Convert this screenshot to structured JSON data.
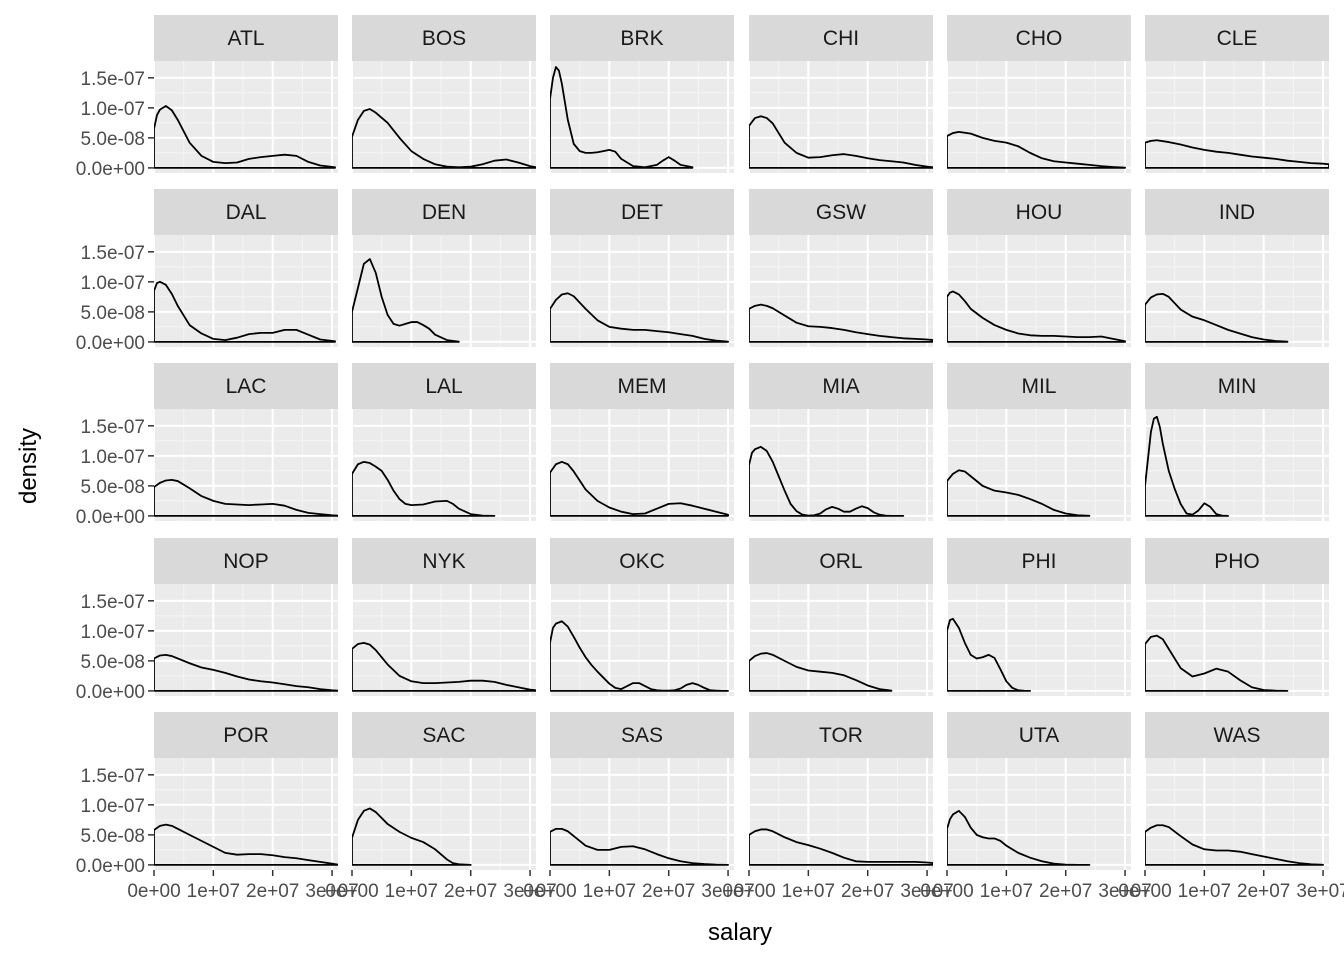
{
  "chart_data": {
    "type": "density",
    "faceted": true,
    "facet_rows": 5,
    "facet_cols": 6,
    "xlabel": "salary",
    "ylabel": "density",
    "xlim": [
      0,
      31000000
    ],
    "ylim": [
      -8.5e-09,
      1.78e-07
    ],
    "x_ticks": [
      0,
      10000000,
      20000000,
      30000000
    ],
    "x_tick_labels": [
      "0e+00",
      "1e+07",
      "2e+07",
      "3e+07"
    ],
    "y_ticks": [
      0,
      5e-08,
      1e-07,
      1.5e-07
    ],
    "y_tick_labels": [
      "0.0e+00",
      "5.0e-08",
      "1.0e-07",
      "1.5e-07"
    ],
    "colors": {
      "panel_bg": "#ebebeb",
      "strip_bg": "#d9d9d9",
      "grid_major": "#ffffff",
      "grid_minor": "#f5f5f5",
      "line": "#000000"
    },
    "facets": [
      {
        "team": "ATL",
        "x": [
          0,
          0.5,
          1,
          2,
          3,
          4,
          6,
          8,
          10,
          12,
          14,
          16,
          18,
          20,
          22,
          24,
          26,
          28,
          30.5
        ],
        "y": [
          6.5,
          8.8,
          9.7,
          10.3,
          9.6,
          8.0,
          4.2,
          2.0,
          1.0,
          0.8,
          0.9,
          1.5,
          1.8,
          2.0,
          2.2,
          2.0,
          1.0,
          0.4,
          0.1
        ]
      },
      {
        "team": "BOS",
        "x": [
          0,
          1,
          2,
          3,
          4,
          6,
          8,
          10,
          12,
          14,
          16,
          18,
          20,
          22,
          24,
          26,
          28,
          30,
          31
        ],
        "y": [
          5.2,
          8.0,
          9.5,
          9.8,
          9.2,
          7.5,
          5.0,
          2.8,
          1.5,
          0.6,
          0.2,
          0.1,
          0.2,
          0.6,
          1.2,
          1.4,
          0.9,
          0.3,
          0.1
        ]
      },
      {
        "team": "BRK",
        "x": [
          0,
          0.5,
          1,
          1.5,
          2,
          3,
          4,
          5,
          6,
          7,
          8,
          9,
          10,
          11,
          12,
          14,
          16,
          18,
          19,
          20,
          21,
          22,
          24
        ],
        "y": [
          11.5,
          15.0,
          16.8,
          16.2,
          14.0,
          8.0,
          4.0,
          2.8,
          2.5,
          2.5,
          2.6,
          2.8,
          3.0,
          2.7,
          1.5,
          0.3,
          0.1,
          0.5,
          1.2,
          1.8,
          1.2,
          0.5,
          0.1
        ]
      },
      {
        "team": "CHI",
        "x": [
          0,
          1,
          2,
          3,
          4,
          6,
          8,
          10,
          12,
          14,
          16,
          18,
          20,
          22,
          24,
          26,
          28,
          30,
          31
        ],
        "y": [
          7.0,
          8.3,
          8.6,
          8.3,
          7.4,
          4.2,
          2.5,
          1.7,
          1.8,
          2.1,
          2.3,
          2.0,
          1.6,
          1.3,
          1.1,
          0.9,
          0.5,
          0.2,
          0.1
        ]
      },
      {
        "team": "CHO",
        "x": [
          0,
          1,
          2,
          4,
          6,
          8,
          10,
          12,
          14,
          16,
          18,
          20,
          22,
          24,
          26,
          28,
          30
        ],
        "y": [
          5.3,
          5.8,
          6.0,
          5.7,
          5.0,
          4.5,
          4.2,
          3.6,
          2.5,
          1.6,
          1.1,
          0.9,
          0.7,
          0.5,
          0.3,
          0.15,
          0.05
        ]
      },
      {
        "team": "CLE",
        "x": [
          0,
          1,
          2,
          4,
          6,
          8,
          10,
          12,
          14,
          16,
          18,
          20,
          22,
          24,
          26,
          28,
          30,
          31
        ],
        "y": [
          4.2,
          4.5,
          4.6,
          4.3,
          3.9,
          3.4,
          3.0,
          2.7,
          2.5,
          2.2,
          1.9,
          1.7,
          1.5,
          1.2,
          1.0,
          0.8,
          0.7,
          0.6
        ]
      },
      {
        "team": "DAL",
        "x": [
          0,
          0.5,
          1,
          2,
          3,
          4,
          6,
          8,
          10,
          12,
          14,
          16,
          18,
          20,
          22,
          24,
          26,
          28,
          30.5
        ],
        "y": [
          8.5,
          9.8,
          10.0,
          9.5,
          8.0,
          6.0,
          2.8,
          1.4,
          0.5,
          0.3,
          0.7,
          1.3,
          1.5,
          1.5,
          2.0,
          2.0,
          1.2,
          0.4,
          0.1
        ]
      },
      {
        "team": "DEN",
        "x": [
          0,
          1,
          2,
          3,
          4,
          5,
          6,
          7,
          8,
          9,
          10,
          11,
          12,
          13,
          14,
          16,
          18
        ],
        "y": [
          5.0,
          9.0,
          13.0,
          13.8,
          11.5,
          7.5,
          4.5,
          3.0,
          2.7,
          3.0,
          3.3,
          3.3,
          2.8,
          2.2,
          1.2,
          0.3,
          0.05
        ]
      },
      {
        "team": "DET",
        "x": [
          0,
          1,
          2,
          3,
          4,
          6,
          8,
          10,
          12,
          14,
          16,
          18,
          20,
          22,
          24,
          26,
          28,
          30
        ],
        "y": [
          5.5,
          7.0,
          7.9,
          8.1,
          7.6,
          5.5,
          3.6,
          2.5,
          2.2,
          2.0,
          2.0,
          1.8,
          1.6,
          1.3,
          1.0,
          0.5,
          0.2,
          0.05
        ]
      },
      {
        "team": "GSW",
        "x": [
          0,
          1,
          2,
          3,
          4,
          6,
          8,
          10,
          12,
          14,
          16,
          18,
          20,
          22,
          24,
          26,
          28,
          30,
          31
        ],
        "y": [
          5.5,
          6.0,
          6.2,
          6.0,
          5.6,
          4.4,
          3.2,
          2.6,
          2.5,
          2.3,
          2.0,
          1.6,
          1.3,
          1.0,
          0.8,
          0.6,
          0.5,
          0.4,
          0.3
        ]
      },
      {
        "team": "HOU",
        "x": [
          0,
          0.5,
          1,
          2,
          3,
          4,
          6,
          8,
          10,
          12,
          14,
          16,
          18,
          20,
          22,
          24,
          26,
          28,
          30
        ],
        "y": [
          7.5,
          8.2,
          8.4,
          7.9,
          6.8,
          5.5,
          4.0,
          2.8,
          2.0,
          1.4,
          1.1,
          1.0,
          1.0,
          0.9,
          0.8,
          0.8,
          0.9,
          0.5,
          0.1
        ]
      },
      {
        "team": "IND",
        "x": [
          0,
          1,
          2,
          3,
          4,
          6,
          8,
          10,
          12,
          14,
          16,
          18,
          20,
          22,
          24
        ],
        "y": [
          6.2,
          7.4,
          7.9,
          8.0,
          7.5,
          5.4,
          4.2,
          3.6,
          2.8,
          2.0,
          1.4,
          0.8,
          0.4,
          0.15,
          0.05
        ]
      },
      {
        "team": "LAC",
        "x": [
          0,
          1,
          2,
          3,
          4,
          6,
          8,
          10,
          12,
          14,
          16,
          18,
          20,
          22,
          24,
          26,
          28,
          30,
          31
        ],
        "y": [
          4.8,
          5.5,
          5.9,
          6.0,
          5.8,
          4.6,
          3.3,
          2.5,
          2.0,
          1.9,
          1.8,
          1.9,
          2.0,
          1.7,
          1.0,
          0.5,
          0.3,
          0.1,
          0.05
        ]
      },
      {
        "team": "LAL",
        "x": [
          0,
          1,
          2,
          3,
          4,
          5,
          6,
          7,
          8,
          9,
          10,
          12,
          14,
          16,
          17,
          18,
          20,
          22,
          24
        ],
        "y": [
          7.0,
          8.6,
          9.0,
          8.8,
          8.2,
          7.5,
          6.0,
          4.2,
          2.8,
          2.0,
          1.8,
          1.9,
          2.4,
          2.5,
          2.0,
          1.2,
          0.3,
          0.05,
          0
        ]
      },
      {
        "team": "MEM",
        "x": [
          0,
          1,
          2,
          3,
          4,
          6,
          8,
          10,
          12,
          14,
          16,
          18,
          20,
          22,
          24,
          26,
          28,
          30
        ],
        "y": [
          7.2,
          8.6,
          9.0,
          8.6,
          7.4,
          4.4,
          2.5,
          1.4,
          0.7,
          0.3,
          0.4,
          1.2,
          2.0,
          2.1,
          1.7,
          1.2,
          0.7,
          0.2
        ]
      },
      {
        "team": "MIA",
        "x": [
          0,
          0.5,
          1,
          2,
          3,
          4,
          5,
          6,
          7,
          8,
          9,
          10,
          11,
          12,
          13,
          14,
          15,
          16,
          17,
          18,
          19,
          20,
          21,
          22,
          23,
          24,
          26
        ],
        "y": [
          8.5,
          10.5,
          11.1,
          11.5,
          10.8,
          9.0,
          6.6,
          4.2,
          2.0,
          0.8,
          0.2,
          0.05,
          0.1,
          0.4,
          1.1,
          1.5,
          1.2,
          0.7,
          0.7,
          1.2,
          1.6,
          1.3,
          0.6,
          0.2,
          0.05,
          0,
          0
        ]
      },
      {
        "team": "MIL",
        "x": [
          0,
          1,
          2,
          3,
          4,
          6,
          8,
          10,
          12,
          14,
          16,
          18,
          20,
          22,
          24
        ],
        "y": [
          5.8,
          7.0,
          7.6,
          7.4,
          6.6,
          5.0,
          4.2,
          3.9,
          3.5,
          2.8,
          2.0,
          1.0,
          0.4,
          0.1,
          0.02
        ]
      },
      {
        "team": "MIN",
        "x": [
          0,
          0.5,
          1,
          1.5,
          2,
          2.5,
          3,
          4,
          5,
          6,
          7,
          8,
          9,
          10,
          11,
          12,
          13,
          14
        ],
        "y": [
          5.0,
          9.5,
          14.0,
          16.2,
          16.5,
          14.8,
          12.0,
          7.5,
          4.5,
          2.0,
          0.4,
          0.2,
          0.9,
          2.1,
          1.5,
          0.3,
          0.05,
          0
        ]
      },
      {
        "team": "NOP",
        "x": [
          0,
          1,
          2,
          3,
          4,
          6,
          8,
          10,
          12,
          14,
          16,
          18,
          20,
          22,
          24,
          26,
          28,
          30,
          31
        ],
        "y": [
          5.4,
          5.9,
          6.0,
          5.8,
          5.4,
          4.6,
          3.9,
          3.5,
          3.0,
          2.4,
          1.9,
          1.6,
          1.4,
          1.1,
          0.8,
          0.6,
          0.3,
          0.1,
          0.05
        ]
      },
      {
        "team": "NYK",
        "x": [
          0,
          1,
          2,
          3,
          4,
          6,
          8,
          10,
          12,
          14,
          16,
          18,
          20,
          22,
          24,
          26,
          28,
          30,
          31
        ],
        "y": [
          7.0,
          7.8,
          8.0,
          7.7,
          6.8,
          4.4,
          2.5,
          1.6,
          1.3,
          1.3,
          1.4,
          1.5,
          1.7,
          1.7,
          1.5,
          1.0,
          0.6,
          0.2,
          0.1
        ]
      },
      {
        "team": "OKC",
        "x": [
          0,
          0.5,
          1,
          2,
          3,
          4,
          5,
          6,
          7,
          8,
          9,
          10,
          11,
          12,
          13,
          14,
          15,
          16,
          17,
          18,
          19,
          20,
          21,
          22,
          23,
          24,
          25,
          26,
          27,
          28,
          29,
          30
        ],
        "y": [
          8.0,
          10.5,
          11.2,
          11.6,
          10.7,
          9.0,
          7.2,
          5.6,
          4.3,
          3.2,
          2.2,
          1.2,
          0.5,
          0.3,
          0.8,
          1.3,
          1.3,
          0.8,
          0.3,
          0.1,
          0.05,
          0.05,
          0.1,
          0.4,
          1.0,
          1.3,
          1.0,
          0.5,
          0.1,
          0.05,
          0,
          0
        ]
      },
      {
        "team": "ORL",
        "x": [
          0,
          1,
          2,
          3,
          4,
          6,
          8,
          10,
          12,
          14,
          16,
          18,
          20,
          22,
          24
        ],
        "y": [
          5.0,
          5.8,
          6.2,
          6.3,
          6.0,
          5.0,
          4.0,
          3.4,
          3.2,
          3.0,
          2.6,
          1.8,
          0.9,
          0.3,
          0.05
        ]
      },
      {
        "team": "PHI",
        "x": [
          0,
          0.5,
          1,
          2,
          3,
          4,
          5,
          6,
          7,
          8,
          9,
          10,
          11,
          12,
          13,
          14
        ],
        "y": [
          10.0,
          11.8,
          12.0,
          10.5,
          8.0,
          6.0,
          5.4,
          5.6,
          6.0,
          5.5,
          3.6,
          1.6,
          0.5,
          0.1,
          0.02,
          0
        ]
      },
      {
        "team": "PHO",
        "x": [
          0,
          1,
          2,
          3,
          4,
          6,
          8,
          10,
          12,
          14,
          16,
          18,
          20,
          22,
          24
        ],
        "y": [
          7.8,
          9.0,
          9.2,
          8.6,
          7.0,
          3.8,
          2.4,
          2.9,
          3.7,
          3.2,
          1.8,
          0.6,
          0.15,
          0.05,
          0
        ]
      },
      {
        "team": "POR",
        "x": [
          0,
          1,
          2,
          3,
          4,
          6,
          8,
          10,
          12,
          14,
          16,
          18,
          20,
          22,
          24,
          26,
          28,
          30,
          31
        ],
        "y": [
          5.8,
          6.5,
          6.7,
          6.5,
          6.0,
          5.0,
          4.0,
          3.0,
          2.0,
          1.7,
          1.8,
          1.8,
          1.6,
          1.3,
          1.1,
          0.8,
          0.5,
          0.2,
          0.05
        ]
      },
      {
        "team": "SAC",
        "x": [
          0,
          1,
          2,
          3,
          4,
          5,
          6,
          8,
          10,
          12,
          14,
          16,
          17,
          18,
          20
        ],
        "y": [
          4.5,
          7.5,
          9.0,
          9.4,
          8.8,
          7.8,
          6.8,
          5.5,
          4.5,
          3.8,
          2.6,
          0.9,
          0.3,
          0.1,
          0
        ]
      },
      {
        "team": "SAS",
        "x": [
          0,
          1,
          2,
          3,
          4,
          6,
          8,
          10,
          12,
          14,
          16,
          18,
          20,
          22,
          24,
          26,
          28,
          30
        ],
        "y": [
          5.5,
          6.0,
          6.0,
          5.6,
          4.8,
          3.2,
          2.5,
          2.5,
          3.0,
          3.1,
          2.6,
          1.8,
          1.1,
          0.6,
          0.3,
          0.15,
          0.05,
          0
        ]
      },
      {
        "team": "TOR",
        "x": [
          0,
          1,
          2,
          3,
          4,
          6,
          8,
          10,
          12,
          14,
          16,
          18,
          20,
          22,
          24,
          26,
          28,
          30,
          31
        ],
        "y": [
          5.0,
          5.6,
          5.9,
          5.9,
          5.6,
          4.6,
          3.8,
          3.3,
          2.7,
          2.0,
          1.2,
          0.6,
          0.5,
          0.5,
          0.5,
          0.5,
          0.5,
          0.4,
          0.3
        ]
      },
      {
        "team": "UTA",
        "x": [
          0,
          0.5,
          1,
          2,
          3,
          4,
          5,
          6,
          7,
          8,
          9,
          10,
          12,
          14,
          16,
          18,
          20,
          22,
          24
        ],
        "y": [
          6.0,
          7.6,
          8.4,
          9.0,
          8.0,
          6.2,
          5.0,
          4.6,
          4.4,
          4.4,
          4.0,
          3.2,
          2.0,
          1.2,
          0.6,
          0.2,
          0.05,
          0,
          0
        ]
      },
      {
        "team": "WAS",
        "x": [
          0,
          1,
          2,
          3,
          4,
          6,
          8,
          10,
          12,
          14,
          16,
          18,
          20,
          22,
          24,
          26,
          28,
          30
        ],
        "y": [
          5.5,
          6.2,
          6.6,
          6.6,
          6.3,
          4.8,
          3.4,
          2.6,
          2.4,
          2.4,
          2.2,
          1.8,
          1.4,
          1.0,
          0.6,
          0.3,
          0.1,
          0.02
        ]
      }
    ]
  }
}
